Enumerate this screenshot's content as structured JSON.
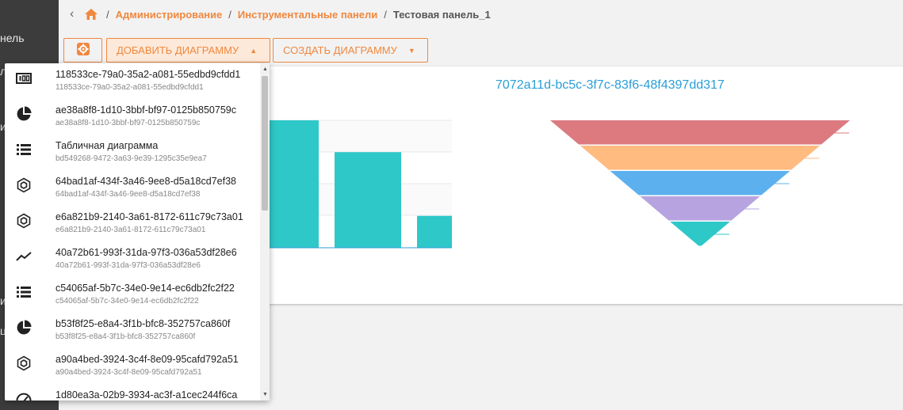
{
  "sidebar": {
    "fragments": [
      "нель",
      "л",
      "и",
      "и",
      "ц"
    ]
  },
  "breadcrumb": {
    "items": [
      "Администрирование",
      "Инструментальные панели"
    ],
    "current": "Тестовая панель_1",
    "separator": "/"
  },
  "toolbar": {
    "add_label": "ДОБАВИТЬ ДИАГРАММУ",
    "create_label": "СОЗДАТЬ ДИАГРАММУ",
    "accent": "#f0883e"
  },
  "dropdown": {
    "items": [
      {
        "icon": "gauge-number-icon",
        "title": "118533ce-79a0-35a2-a081-55edbd9cfdd1",
        "sub": "118533ce-79a0-35a2-a081-55edbd9cfdd1"
      },
      {
        "icon": "pie-chart-icon",
        "title": "ae38a8f8-1d10-3bbf-bf97-0125b850759c",
        "sub": "ae38a8f8-1d10-3bbf-bf97-0125b850759c"
      },
      {
        "icon": "table-list-icon",
        "title": "Табличная диаграмма",
        "sub": "bd549268-9472-3a63-9e39-1295c35e9ea7"
      },
      {
        "icon": "hexagon-icon",
        "title": "64bad1af-434f-3a46-9ee8-d5a18cd7ef38",
        "sub": "64bad1af-434f-3a46-9ee8-d5a18cd7ef38"
      },
      {
        "icon": "hexagon-icon",
        "title": "e6a821b9-2140-3a61-8172-611c79c73a01",
        "sub": "e6a821b9-2140-3a61-8172-611c79c73a01"
      },
      {
        "icon": "line-chart-icon",
        "title": "40a72b61-993f-31da-97f3-036a53df28e6",
        "sub": "40a72b61-993f-31da-97f3-036a53df28e6"
      },
      {
        "icon": "table-list-icon",
        "title": "c54065af-5b7c-34e0-9e14-ec6db2fc2f22",
        "sub": "c54065af-5b7c-34e0-9e14-ec6db2fc2f22"
      },
      {
        "icon": "pie-chart-icon",
        "title": "b53f8f25-e8a4-3f1b-bfc8-352757ca860f",
        "sub": "b53f8f25-e8a4-3f1b-bfc8-352757ca860f"
      },
      {
        "icon": "hexagon-icon",
        "title": "a90a4bed-3924-3c4f-8e09-95cafd792a51",
        "sub": "a90a4bed-3924-3c4f-8e09-95cafd792a51"
      },
      {
        "icon": "speedometer-icon",
        "title": "1d80ea3a-02b9-3934-ac3f-a1cec244f6ca",
        "sub": ""
      }
    ]
  },
  "bar_chart": {
    "values": [
      100,
      75,
      25
    ],
    "ymax": 100,
    "color": "#2ec8c8"
  },
  "funnel_chart": {
    "title": "7072a11d-bc5c-3f7c-83f6-48f4397dd317",
    "colors": [
      "#dc7a80",
      "#ffbb80",
      "#5db0ee",
      "#b6a3e0",
      "#2ec8c8"
    ]
  }
}
